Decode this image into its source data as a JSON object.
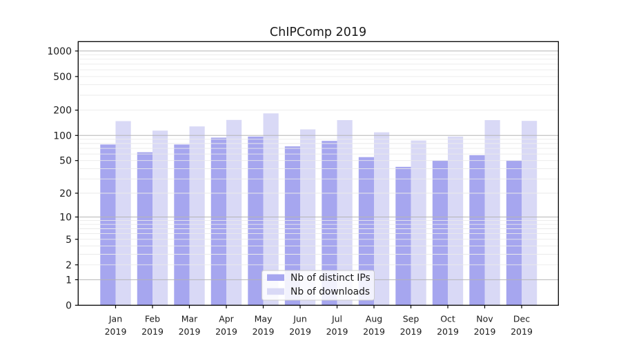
{
  "chart_data": {
    "type": "bar",
    "title": "ChIPComp 2019",
    "categories": [
      "Jan",
      "Feb",
      "Mar",
      "Apr",
      "May",
      "Jun",
      "Jul",
      "Aug",
      "Sep",
      "Oct",
      "Nov",
      "Dec"
    ],
    "year_label": "2019",
    "series": [
      {
        "name": "Nb of distinct IPs",
        "color": "#a6a6ef",
        "values": [
          78,
          63,
          78,
          94,
          97,
          74,
          86,
          55,
          42,
          50,
          58,
          50
        ]
      },
      {
        "name": "Nb of downloads",
        "color": "#d9d9f6",
        "values": [
          148,
          114,
          128,
          153,
          183,
          118,
          152,
          109,
          87,
          97,
          152,
          149
        ]
      }
    ],
    "yscale": "log1p",
    "ylim": [
      0,
      1300
    ],
    "yticks": [
      0,
      1,
      2,
      5,
      10,
      20,
      50,
      100,
      200,
      500,
      1000
    ],
    "grid": {
      "major": [
        1,
        10,
        100,
        1000
      ],
      "minor": [
        2,
        3,
        4,
        5,
        6,
        7,
        8,
        9,
        20,
        30,
        40,
        50,
        60,
        70,
        80,
        90,
        200,
        300,
        400,
        500,
        600,
        700,
        800,
        900
      ]
    },
    "legend": {
      "labels": [
        "Nb of distinct IPs",
        "Nb of downloads"
      ],
      "position": "bottom-center"
    },
    "colors": {
      "axis": "#000000",
      "grid_major": "#b5b5b5",
      "grid_minor": "#eaeaea",
      "background": "#ffffff",
      "legend_border": "#cccccc",
      "text": "#1a1a1a"
    }
  }
}
